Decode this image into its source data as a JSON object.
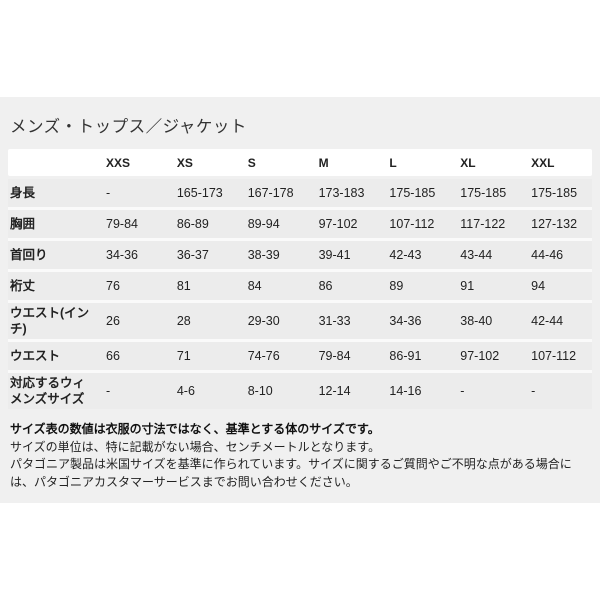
{
  "section": {
    "title": "メンズ・トップス／ジャケット",
    "table": {
      "columns": [
        "",
        "XXS",
        "XS",
        "S",
        "M",
        "L",
        "XL",
        "XXL"
      ],
      "rows": [
        {
          "label": "身長",
          "values": [
            "-",
            "165-173",
            "167-178",
            "173-183",
            "175-185",
            "175-185",
            "175-185"
          ]
        },
        {
          "label": "胸囲",
          "values": [
            "79-84",
            "86-89",
            "89-94",
            "97-102",
            "107-112",
            "117-122",
            "127-132"
          ]
        },
        {
          "label": "首回り",
          "values": [
            "34-36",
            "36-37",
            "38-39",
            "39-41",
            "42-43",
            "43-44",
            "44-46"
          ]
        },
        {
          "label": "裄丈",
          "values": [
            "76",
            "81",
            "84",
            "86",
            "89",
            "91",
            "94"
          ]
        },
        {
          "label": "ウエスト(インチ)",
          "values": [
            "26",
            "28",
            "29-30",
            "31-33",
            "34-36",
            "38-40",
            "42-44"
          ]
        },
        {
          "label": "ウエスト",
          "values": [
            "66",
            "71",
            "74-76",
            "79-84",
            "86-91",
            "97-102",
            "107-112"
          ]
        },
        {
          "label": "対応するウィメンズサイズ",
          "values": [
            "-",
            "4-6",
            "8-10",
            "12-14",
            "14-16",
            "-",
            "-"
          ]
        }
      ]
    },
    "notes": [
      {
        "text": "サイズ表の数値は衣服の寸法ではなく、基準とする体のサイズです。"
      },
      {
        "text": "サイズの単位は、特に記載がない場合、センチメートルとなります。"
      },
      {
        "text": "パタゴニア製品は米国サイズを基準に作られています。サイズに関するご質問やご不明な点がある場合には、パタゴニアカスタマーサービスまでお問い合わせください。"
      }
    ],
    "colors": {
      "section_bg": "#f0f0f0",
      "header_bg": "#ffffff",
      "row_bg": "#ececec",
      "separator": "#fafafa",
      "text": "#222222"
    }
  }
}
